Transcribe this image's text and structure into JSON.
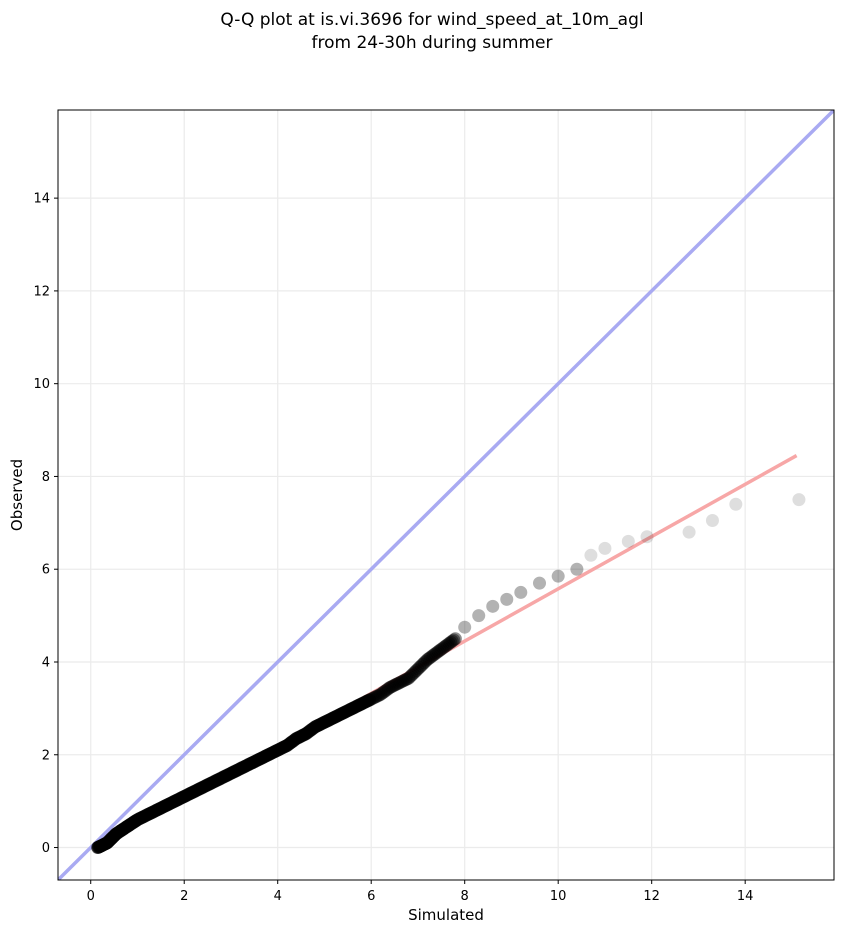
{
  "chart_data": {
    "type": "scatter",
    "title_lines": [
      "Q-Q plot at is.vi.3696 for wind_speed_at_10m_agl",
      "from 24-30h during summer"
    ],
    "xlabel": "Simulated",
    "ylabel": "Observed",
    "xlim": [
      -0.7,
      15.9
    ],
    "ylim": [
      -0.7,
      15.9
    ],
    "xticks": [
      0,
      2,
      4,
      6,
      8,
      10,
      12,
      14
    ],
    "yticks": [
      0,
      2,
      4,
      6,
      8,
      10,
      12,
      14
    ],
    "grid": true,
    "colors": {
      "points": "#000000",
      "identity_line": "#a9aaf2",
      "fit_line": "#f7a7a7",
      "fit_line_dark": "#8b0000",
      "grid": "#ebebeb"
    },
    "identity_line": {
      "from": [
        -0.7,
        -0.7
      ],
      "to": [
        15.9,
        15.9
      ]
    },
    "fit_line": {
      "from": [
        0.1,
        0.0
      ],
      "to": [
        15.1,
        8.45
      ]
    },
    "series": [
      {
        "points": [
          [
            0.15,
            0.0
          ],
          [
            0.25,
            0.05
          ],
          [
            0.35,
            0.1
          ],
          [
            0.45,
            0.2
          ],
          [
            0.55,
            0.3
          ],
          [
            0.7,
            0.4
          ],
          [
            0.85,
            0.5
          ],
          [
            1.0,
            0.6
          ],
          [
            1.2,
            0.7
          ],
          [
            1.4,
            0.8
          ],
          [
            1.6,
            0.9
          ],
          [
            1.8,
            1.0
          ],
          [
            2.0,
            1.1
          ],
          [
            2.2,
            1.2
          ],
          [
            2.4,
            1.3
          ],
          [
            2.6,
            1.4
          ],
          [
            2.8,
            1.5
          ],
          [
            3.0,
            1.6
          ],
          [
            3.2,
            1.7
          ],
          [
            3.4,
            1.8
          ],
          [
            3.6,
            1.9
          ],
          [
            3.8,
            2.0
          ],
          [
            4.0,
            2.1
          ],
          [
            4.2,
            2.2
          ],
          [
            4.4,
            2.35
          ],
          [
            4.6,
            2.45
          ],
          [
            4.8,
            2.6
          ],
          [
            5.0,
            2.7
          ],
          [
            5.2,
            2.8
          ],
          [
            5.4,
            2.9
          ],
          [
            5.6,
            3.0
          ],
          [
            5.8,
            3.1
          ],
          [
            6.0,
            3.2
          ],
          [
            6.2,
            3.3
          ],
          [
            6.4,
            3.45
          ],
          [
            6.6,
            3.55
          ],
          [
            6.8,
            3.65
          ],
          [
            7.0,
            3.85
          ],
          [
            7.2,
            4.05
          ],
          [
            7.4,
            4.2
          ],
          [
            7.6,
            4.35
          ],
          [
            7.8,
            4.5
          ],
          [
            8.0,
            4.75
          ],
          [
            8.3,
            5.0
          ],
          [
            8.6,
            5.2
          ],
          [
            8.9,
            5.35
          ],
          [
            9.2,
            5.5
          ],
          [
            9.6,
            5.7
          ],
          [
            10.0,
            5.85
          ],
          [
            10.4,
            6.0
          ],
          [
            10.7,
            6.3
          ],
          [
            11.0,
            6.45
          ],
          [
            11.5,
            6.6
          ],
          [
            11.9,
            6.7
          ],
          [
            12.8,
            6.8
          ],
          [
            13.3,
            7.05
          ],
          [
            13.8,
            7.4
          ],
          [
            15.15,
            7.5
          ]
        ]
      }
    ]
  }
}
